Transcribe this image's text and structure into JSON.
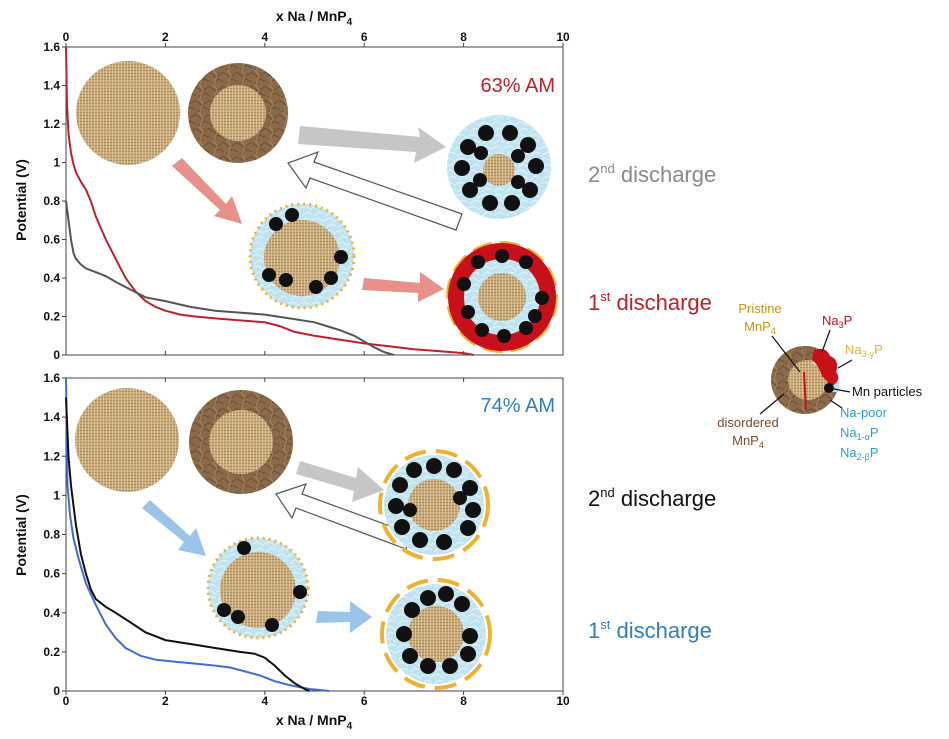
{
  "chart_data": [
    {
      "type": "line",
      "panel": "top",
      "annotation": "63% AM",
      "xlabel": "x Na / MnP",
      "xlabel_sub": "4",
      "ylabel": "Potential (V)",
      "xlim": [
        0,
        10
      ],
      "ylim": [
        0,
        1.6
      ],
      "xticks": [
        "0",
        "2",
        "4",
        "6",
        "8",
        "10"
      ],
      "yticks": [
        "0",
        "0.2",
        "0.4",
        "0.6",
        "0.8",
        "1",
        "1.2",
        "1.4",
        "1.6"
      ],
      "series": [
        {
          "name": "1st discharge",
          "color": "#c0202a",
          "x": [
            0,
            0.02,
            0.05,
            0.1,
            0.15,
            0.2,
            0.3,
            0.4,
            0.5,
            0.6,
            0.8,
            1.0,
            1.2,
            1.4,
            1.6,
            1.8,
            2.0,
            2.3,
            2.6,
            3.0,
            3.5,
            4.0,
            4.3,
            4.6,
            5.0,
            5.5,
            6.0,
            6.5,
            7.0,
            7.5,
            8.0,
            8.2
          ],
          "y": [
            1.6,
            1.3,
            1.15,
            1.05,
            0.99,
            0.95,
            0.9,
            0.86,
            0.8,
            0.72,
            0.6,
            0.5,
            0.4,
            0.33,
            0.28,
            0.25,
            0.23,
            0.21,
            0.2,
            0.19,
            0.18,
            0.17,
            0.15,
            0.12,
            0.1,
            0.08,
            0.06,
            0.045,
            0.03,
            0.02,
            0.01,
            0.0
          ]
        },
        {
          "name": "2nd discharge",
          "color": "#555555",
          "x": [
            0,
            0.05,
            0.1,
            0.15,
            0.2,
            0.3,
            0.4,
            0.6,
            0.8,
            1.0,
            1.3,
            1.6,
            2.0,
            2.5,
            3.0,
            3.5,
            4.0,
            4.5,
            5.0,
            5.5,
            5.8,
            6.0,
            6.2,
            6.4,
            6.6
          ],
          "y": [
            0.8,
            0.7,
            0.6,
            0.53,
            0.5,
            0.47,
            0.45,
            0.43,
            0.41,
            0.38,
            0.34,
            0.3,
            0.28,
            0.25,
            0.23,
            0.22,
            0.21,
            0.19,
            0.17,
            0.13,
            0.1,
            0.07,
            0.04,
            0.015,
            0.0
          ]
        }
      ]
    },
    {
      "type": "line",
      "panel": "bottom",
      "annotation": "74% AM",
      "xlabel": "x Na / MnP",
      "xlabel_sub": "4",
      "ylabel": "Potential (V)",
      "xlim": [
        0,
        10
      ],
      "ylim": [
        0,
        1.6
      ],
      "xticks": [
        "0",
        "2",
        "4",
        "6",
        "8",
        "10"
      ],
      "yticks": [
        "0",
        "0.2",
        "0.4",
        "0.6",
        "0.8",
        "1",
        "1.2",
        "1.4",
        "1.6"
      ],
      "series": [
        {
          "name": "1st discharge",
          "color": "#3b6fd4",
          "x": [
            0,
            0.03,
            0.08,
            0.15,
            0.25,
            0.4,
            0.6,
            0.8,
            1.0,
            1.2,
            1.5,
            1.8,
            2.2,
            2.6,
            3.0,
            3.3,
            3.6,
            3.9,
            4.2,
            4.5,
            4.7,
            4.9,
            5.1,
            5.3
          ],
          "y": [
            1.6,
            1.05,
            0.9,
            0.78,
            0.68,
            0.55,
            0.44,
            0.34,
            0.27,
            0.22,
            0.18,
            0.16,
            0.15,
            0.14,
            0.13,
            0.12,
            0.1,
            0.08,
            0.05,
            0.03,
            0.02,
            0.01,
            0.005,
            0.0
          ]
        },
        {
          "name": "2nd discharge",
          "color": "#111111",
          "x": [
            0,
            0.05,
            0.1,
            0.2,
            0.3,
            0.4,
            0.5,
            0.6,
            0.8,
            1.0,
            1.3,
            1.6,
            2.0,
            2.5,
            3.0,
            3.5,
            3.8,
            4.0,
            4.2,
            4.4,
            4.6,
            4.8,
            4.9
          ],
          "y": [
            1.5,
            1.2,
            1.05,
            0.85,
            0.7,
            0.6,
            0.52,
            0.47,
            0.43,
            0.4,
            0.35,
            0.3,
            0.26,
            0.24,
            0.22,
            0.2,
            0.19,
            0.17,
            0.13,
            0.08,
            0.04,
            0.01,
            0.0
          ]
        }
      ]
    }
  ],
  "labels": {
    "top_second": {
      "pre": "2",
      "sup": "nd",
      "post": " discharge",
      "color": "#8a8a8a"
    },
    "top_first": {
      "pre": "1",
      "sup": "st",
      "post": " discharge",
      "color": "#c0202a"
    },
    "bottom_second": {
      "pre": "2",
      "sup": "nd",
      "post": " discharge",
      "color": "#111111"
    },
    "bottom_first": {
      "pre": "1",
      "sup": "st",
      "post": " discharge",
      "color": "#2f7fc1"
    }
  },
  "legend": {
    "pristine": "Pristine",
    "pristine_formula": "MnP",
    "pristine_sub": "4",
    "na3p": "Na",
    "na3p_sub": "3",
    "na3p_post": "P",
    "na3gp": "Na",
    "na3gp_sub": "3-γ",
    "na3gp_post": "P",
    "mn": "Mn particles",
    "napoor": "Na-poor",
    "na1a": "Na",
    "na1a_sub": "1-α",
    "na1a_post": "P",
    "na2b": "Na",
    "na2b_sub": "2-β",
    "na2b_post": "P",
    "disordered": "disordered",
    "disordered_formula": "MnP",
    "disordered_sub": "4"
  },
  "colors": {
    "pristine": "#c9ab7c",
    "disordered": "#8a6a4a",
    "na_poor": "#bfe3f0",
    "na3p": "#c8101a",
    "na3gp": "#f0b030",
    "mn": "#111111",
    "arrow_gray": "#c6c6c6",
    "arrow_red": "#e8908a",
    "arrow_blue": "#9cc4e8",
    "pristine_label": "#c8921a",
    "disordered_label": "#7a4a2a",
    "napoor_label": "#2aa0d0"
  }
}
